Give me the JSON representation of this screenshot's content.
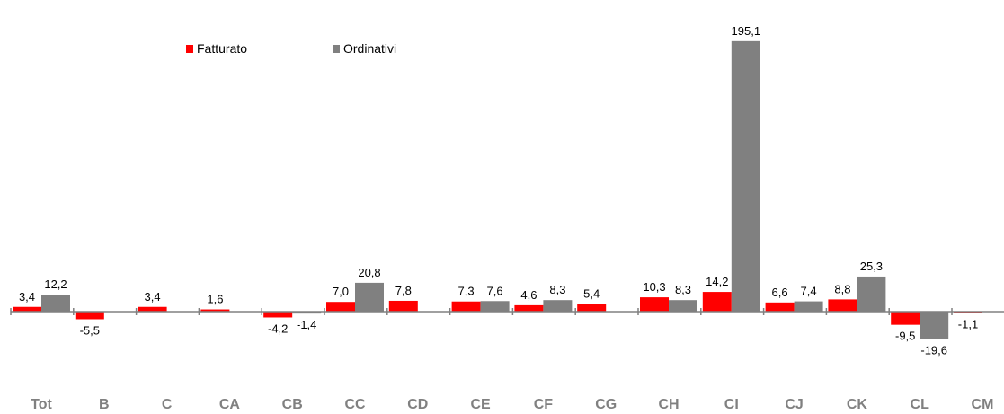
{
  "chart_data": {
    "type": "bar",
    "categories": [
      "Tot",
      "B",
      "C",
      "CA",
      "CB",
      "CC",
      "CD",
      "CE",
      "CF",
      "CG",
      "CH",
      "CI",
      "CJ",
      "CK",
      "CL",
      "CM"
    ],
    "series": [
      {
        "name": "Fatturato",
        "color": "#ff0000",
        "values": [
          3.4,
          -5.5,
          3.4,
          1.6,
          -4.2,
          7.0,
          7.8,
          7.3,
          4.6,
          5.4,
          10.3,
          14.2,
          6.6,
          8.8,
          -9.5,
          -1.1
        ],
        "labels": [
          "3,4",
          "-5,5",
          "3,4",
          "1,6",
          "-4,2",
          "7,0",
          "7,8",
          "7,3",
          "4,6",
          "5,4",
          "10,3",
          "14,2",
          "6,6",
          "8,8",
          "-9,5",
          "-1,1"
        ]
      },
      {
        "name": "Ordinativi",
        "color": "#808080",
        "values": [
          12.2,
          null,
          null,
          null,
          -1.4,
          20.8,
          null,
          7.6,
          8.3,
          null,
          8.3,
          195.1,
          7.4,
          25.3,
          -19.6,
          null
        ],
        "labels": [
          "12,2",
          "",
          "",
          "",
          "-1,4",
          "20,8",
          "",
          "7,6",
          "8,3",
          "",
          "8,3",
          "195,1",
          "7,4",
          "25,3",
          "-19,6",
          ""
        ]
      }
    ],
    "ylim": [
      -25,
      200
    ],
    "legend": "top-left",
    "grid": false,
    "axis_color": "#808080"
  }
}
